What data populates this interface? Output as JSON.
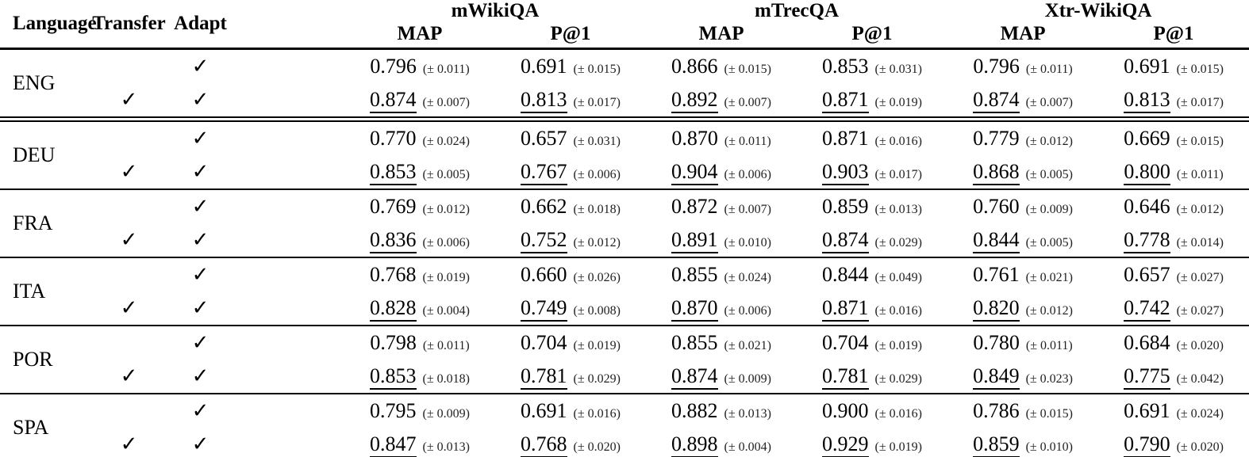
{
  "table": {
    "checkmark": "✓",
    "columns": [
      "Language",
      "Transfer",
      "Adapt"
    ],
    "groups": [
      {
        "label": "mWikiQA",
        "metrics": [
          "MAP",
          "P@1"
        ]
      },
      {
        "label": "mTrecQA",
        "metrics": [
          "MAP",
          "P@1"
        ]
      },
      {
        "label": "Xtr-WikiQA",
        "metrics": [
          "MAP",
          "P@1"
        ]
      }
    ],
    "sections": [
      {
        "language": "ENG",
        "rows": [
          {
            "transfer": false,
            "adapt": true,
            "underline": false,
            "values": [
              {
                "v": "0.796",
                "pm": "(± 0.011)"
              },
              {
                "v": "0.691",
                "pm": "(± 0.015)"
              },
              {
                "v": "0.866",
                "pm": "(± 0.015)"
              },
              {
                "v": "0.853",
                "pm": "(± 0.031)"
              },
              {
                "v": "0.796",
                "pm": "(± 0.011)"
              },
              {
                "v": "0.691",
                "pm": "(± 0.015)"
              }
            ]
          },
          {
            "transfer": true,
            "adapt": true,
            "underline": true,
            "values": [
              {
                "v": "0.874",
                "pm": "(± 0.007)"
              },
              {
                "v": "0.813",
                "pm": "(± 0.017)"
              },
              {
                "v": "0.892",
                "pm": "(± 0.007)"
              },
              {
                "v": "0.871",
                "pm": "(± 0.019)"
              },
              {
                "v": "0.874",
                "pm": "(± 0.007)"
              },
              {
                "v": "0.813",
                "pm": "(± 0.017)"
              }
            ]
          }
        ]
      },
      {
        "language": "DEU",
        "rows": [
          {
            "transfer": false,
            "adapt": true,
            "underline": false,
            "values": [
              {
                "v": "0.770",
                "pm": "(± 0.024)"
              },
              {
                "v": "0.657",
                "pm": "(± 0.031)"
              },
              {
                "v": "0.870",
                "pm": "(± 0.011)"
              },
              {
                "v": "0.871",
                "pm": "(± 0.016)"
              },
              {
                "v": "0.779",
                "pm": "(± 0.012)"
              },
              {
                "v": "0.669",
                "pm": "(± 0.015)"
              }
            ]
          },
          {
            "transfer": true,
            "adapt": true,
            "underline": true,
            "values": [
              {
                "v": "0.853",
                "pm": "(± 0.005)"
              },
              {
                "v": "0.767",
                "pm": "(± 0.006)"
              },
              {
                "v": "0.904",
                "pm": "(± 0.006)"
              },
              {
                "v": "0.903",
                "pm": "(± 0.017)"
              },
              {
                "v": "0.868",
                "pm": "(± 0.005)"
              },
              {
                "v": "0.800",
                "pm": "(± 0.011)"
              }
            ]
          }
        ]
      },
      {
        "language": "FRA",
        "rows": [
          {
            "transfer": false,
            "adapt": true,
            "underline": false,
            "values": [
              {
                "v": "0.769",
                "pm": "(± 0.012)"
              },
              {
                "v": "0.662",
                "pm": "(± 0.018)"
              },
              {
                "v": "0.872",
                "pm": "(± 0.007)"
              },
              {
                "v": "0.859",
                "pm": "(± 0.013)"
              },
              {
                "v": "0.760",
                "pm": "(± 0.009)"
              },
              {
                "v": "0.646",
                "pm": "(± 0.012)"
              }
            ]
          },
          {
            "transfer": true,
            "adapt": true,
            "underline": true,
            "values": [
              {
                "v": "0.836",
                "pm": "(± 0.006)"
              },
              {
                "v": "0.752",
                "pm": "(± 0.012)"
              },
              {
                "v": "0.891",
                "pm": "(± 0.010)"
              },
              {
                "v": "0.874",
                "pm": "(± 0.029)"
              },
              {
                "v": "0.844",
                "pm": "(± 0.005)"
              },
              {
                "v": "0.778",
                "pm": "(± 0.014)"
              }
            ]
          }
        ]
      },
      {
        "language": "ITA",
        "rows": [
          {
            "transfer": false,
            "adapt": true,
            "underline": false,
            "values": [
              {
                "v": "0.768",
                "pm": "(± 0.019)"
              },
              {
                "v": "0.660",
                "pm": "(± 0.026)"
              },
              {
                "v": "0.855",
                "pm": "(± 0.024)"
              },
              {
                "v": "0.844",
                "pm": "(± 0.049)"
              },
              {
                "v": "0.761",
                "pm": "(± 0.021)"
              },
              {
                "v": "0.657",
                "pm": "(± 0.027)"
              }
            ]
          },
          {
            "transfer": true,
            "adapt": true,
            "underline": true,
            "values": [
              {
                "v": "0.828",
                "pm": "(± 0.004)"
              },
              {
                "v": "0.749",
                "pm": "(± 0.008)"
              },
              {
                "v": "0.870",
                "pm": "(± 0.006)"
              },
              {
                "v": "0.871",
                "pm": "(± 0.016)"
              },
              {
                "v": "0.820",
                "pm": "(± 0.012)"
              },
              {
                "v": "0.742",
                "pm": "(± 0.027)"
              }
            ]
          }
        ]
      },
      {
        "language": "POR",
        "rows": [
          {
            "transfer": false,
            "adapt": true,
            "underline": false,
            "values": [
              {
                "v": "0.798",
                "pm": "(± 0.011)"
              },
              {
                "v": "0.704",
                "pm": "(± 0.019)"
              },
              {
                "v": "0.855",
                "pm": "(± 0.021)"
              },
              {
                "v": "0.704",
                "pm": "(± 0.019)"
              },
              {
                "v": "0.780",
                "pm": "(± 0.011)"
              },
              {
                "v": "0.684",
                "pm": "(± 0.020)"
              }
            ]
          },
          {
            "transfer": true,
            "adapt": true,
            "underline": true,
            "values": [
              {
                "v": "0.853",
                "pm": "(± 0.018)"
              },
              {
                "v": "0.781",
                "pm": "(± 0.029)"
              },
              {
                "v": "0.874",
                "pm": "(± 0.009)"
              },
              {
                "v": "0.781",
                "pm": "(± 0.029)"
              },
              {
                "v": "0.849",
                "pm": "(± 0.023)"
              },
              {
                "v": "0.775",
                "pm": "(± 0.042)"
              }
            ]
          }
        ]
      },
      {
        "language": "SPA",
        "rows": [
          {
            "transfer": false,
            "adapt": true,
            "underline": false,
            "values": [
              {
                "v": "0.795",
                "pm": "(± 0.009)"
              },
              {
                "v": "0.691",
                "pm": "(± 0.016)"
              },
              {
                "v": "0.882",
                "pm": "(± 0.013)"
              },
              {
                "v": "0.900",
                "pm": "(± 0.016)"
              },
              {
                "v": "0.786",
                "pm": "(± 0.015)"
              },
              {
                "v": "0.691",
                "pm": "(± 0.024)"
              }
            ]
          },
          {
            "transfer": true,
            "adapt": true,
            "underline": true,
            "values": [
              {
                "v": "0.847",
                "pm": "(± 0.013)"
              },
              {
                "v": "0.768",
                "pm": "(± 0.020)"
              },
              {
                "v": "0.898",
                "pm": "(± 0.004)"
              },
              {
                "v": "0.929",
                "pm": "(± 0.019)"
              },
              {
                "v": "0.859",
                "pm": "(± 0.010)"
              },
              {
                "v": "0.790",
                "pm": "(± 0.020)"
              }
            ]
          }
        ]
      }
    ]
  }
}
